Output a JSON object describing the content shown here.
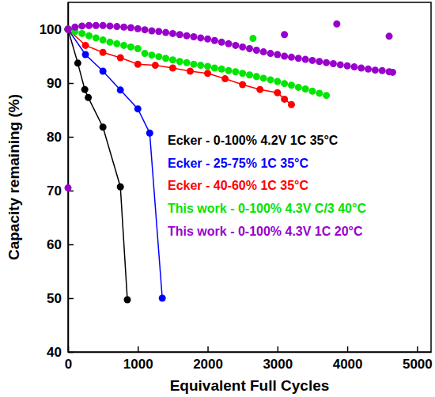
{
  "chart_data": {
    "type": "scatter",
    "x_label": "Equivalent Full Cycles",
    "y_label": "Capacity remaining (%)",
    "xlim": [
      0,
      5200
    ],
    "xticks": [
      0,
      1000,
      2000,
      3000,
      4000,
      5000
    ],
    "ylim": [
      40,
      105
    ],
    "yticks": [
      40,
      50,
      60,
      70,
      80,
      90,
      100
    ],
    "grid": false,
    "legend": "right",
    "series": [
      {
        "name": "Ecker - 0-100% 4.2V 1C 35°C",
        "color": "#000000",
        "marker": "circle",
        "line_style": "solid",
        "x": [
          0,
          140,
          240,
          290,
          500,
          750,
          850
        ],
        "values": [
          100,
          93.7,
          88.8,
          87.3,
          81.8,
          70.7,
          49.7
        ]
      },
      {
        "name": "Ecker - 25-75% 1C 35°C",
        "color": "#0000ff",
        "marker": "circle",
        "line_style": "solid",
        "x": [
          0,
          250,
          500,
          750,
          1000,
          1170,
          1350
        ],
        "values": [
          100,
          95.3,
          92.2,
          88.7,
          85.2,
          80.7,
          50.0
        ]
      },
      {
        "name": "Ecker - 40-60% 1C 35°C",
        "color": "#ff0000",
        "marker": "circle",
        "line_style": "solid",
        "x": [
          0,
          250,
          500,
          750,
          1000,
          1250,
          1500,
          1750,
          2000,
          2250,
          2500,
          2750,
          3000,
          3100,
          3200
        ],
        "values": [
          100,
          97.0,
          95.7,
          94.7,
          93.5,
          93.3,
          92.8,
          92.2,
          91.8,
          90.8,
          89.7,
          88.8,
          88.2,
          87.0,
          86.0
        ]
      },
      {
        "name": "This work - 0-100% 4.3V C/3 40°C",
        "color": "#00e600",
        "marker": "circle",
        "line_style": "none",
        "x": [
          0,
          100,
          200,
          300,
          400,
          500,
          600,
          700,
          800,
          900,
          1000,
          1100,
          1200,
          1300,
          1400,
          1500,
          1600,
          1700,
          1800,
          1900,
          2000,
          2100,
          2200,
          2300,
          2400,
          2500,
          2600,
          2700,
          2800,
          2900,
          3000,
          3100,
          3200,
          3300,
          3400,
          3500,
          3600,
          3700,
          2650
        ],
        "values": [
          100,
          99.6,
          99.2,
          98.8,
          98.4,
          98.0,
          97.6,
          97.3,
          97.0,
          96.7,
          96.4,
          95.5,
          95.2,
          94.9,
          94.6,
          94.3,
          94.0,
          93.8,
          93.5,
          93.3,
          93.1,
          92.8,
          92.6,
          92.3,
          92.1,
          91.8,
          91.5,
          91.2,
          90.9,
          90.6,
          90.3,
          89.9,
          89.6,
          89.2,
          88.9,
          88.5,
          88.1,
          87.7,
          98.3
        ]
      },
      {
        "name": "This work - 0-100% 4.3V 1C 20°C",
        "color": "#9900cc",
        "marker": "circle",
        "line_style": "none",
        "x": [
          0,
          100,
          200,
          300,
          400,
          500,
          600,
          700,
          800,
          900,
          1000,
          1100,
          1200,
          1300,
          1400,
          1500,
          1600,
          1700,
          1800,
          1900,
          2000,
          2100,
          2200,
          2300,
          2400,
          2500,
          2600,
          2700,
          2800,
          2900,
          3000,
          3100,
          3200,
          3300,
          3400,
          3500,
          3600,
          3700,
          3800,
          3900,
          4000,
          4100,
          4200,
          4300,
          4400,
          4500,
          4600,
          4650,
          0,
          3100,
          3850,
          4600
        ],
        "values": [
          100,
          100.4,
          100.6,
          100.7,
          100.7,
          100.7,
          100.6,
          100.5,
          100.4,
          100.3,
          100.1,
          99.9,
          99.7,
          99.6,
          99.4,
          99.2,
          99.0,
          98.8,
          98.6,
          98.4,
          98.2,
          97.9,
          97.6,
          97.3,
          97.0,
          96.7,
          96.4,
          96.1,
          95.8,
          95.5,
          95.3,
          95.0,
          94.8,
          94.6,
          94.4,
          94.2,
          94.0,
          93.8,
          93.6,
          93.4,
          93.2,
          93.0,
          92.8,
          92.6,
          92.4,
          92.3,
          92.1,
          92.0,
          70.5,
          99.0,
          101.0,
          98.7
        ]
      }
    ]
  }
}
